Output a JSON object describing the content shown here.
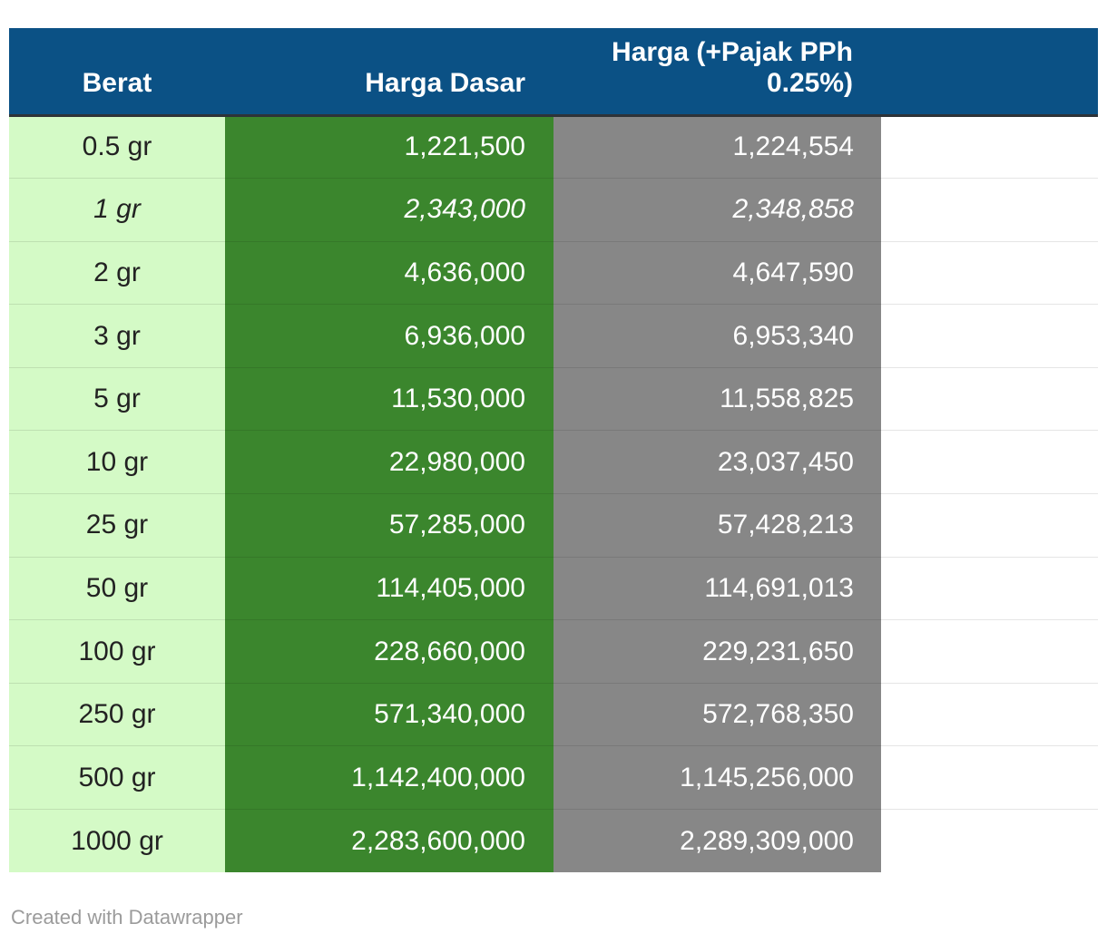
{
  "colors": {
    "header_bg": "#0b5185",
    "header_text": "#ffffff",
    "col_berat_bg": "#d4fac6",
    "col_dasar_bg": "#3b862d",
    "col_pajak_bg": "#878787",
    "berat_text": "#222222",
    "value_text": "#ffffff",
    "header_underline": "#2e3338",
    "footer_text": "#9b9b9b"
  },
  "table": {
    "columns": [
      {
        "label": "Berat"
      },
      {
        "label": "Harga Dasar"
      },
      {
        "label": "Harga (+Pajak PPh 0.25%)"
      }
    ],
    "rows": [
      {
        "berat": "0.5 gr",
        "harga_dasar": "1,221,500",
        "harga_pajak": "1,224,554",
        "italic": false
      },
      {
        "berat": "1 gr",
        "harga_dasar": "2,343,000",
        "harga_pajak": "2,348,858",
        "italic": true
      },
      {
        "berat": "2 gr",
        "harga_dasar": "4,636,000",
        "harga_pajak": "4,647,590",
        "italic": false
      },
      {
        "berat": "3 gr",
        "harga_dasar": "6,936,000",
        "harga_pajak": "6,953,340",
        "italic": false
      },
      {
        "berat": "5 gr",
        "harga_dasar": "11,530,000",
        "harga_pajak": "11,558,825",
        "italic": false
      },
      {
        "berat": "10 gr",
        "harga_dasar": "22,980,000",
        "harga_pajak": "23,037,450",
        "italic": false
      },
      {
        "berat": "25 gr",
        "harga_dasar": "57,285,000",
        "harga_pajak": "57,428,213",
        "italic": false
      },
      {
        "berat": "50 gr",
        "harga_dasar": "114,405,000",
        "harga_pajak": "114,691,013",
        "italic": false
      },
      {
        "berat": "100 gr",
        "harga_dasar": "228,660,000",
        "harga_pajak": "229,231,650",
        "italic": false
      },
      {
        "berat": "250 gr",
        "harga_dasar": "571,340,000",
        "harga_pajak": "572,768,350",
        "italic": false
      },
      {
        "berat": "500 gr",
        "harga_dasar": "1,142,400,000",
        "harga_pajak": "1,145,256,000",
        "italic": false
      },
      {
        "berat": "1000 gr",
        "harga_dasar": "2,283,600,000",
        "harga_pajak": "2,289,309,000",
        "italic": false
      }
    ]
  },
  "footer": {
    "attribution": "Created with Datawrapper"
  },
  "chart_data": {
    "type": "table",
    "columns": [
      "Berat",
      "Harga Dasar",
      "Harga (+Pajak PPh 0.25%)"
    ],
    "rows": [
      [
        "0.5 gr",
        1221500,
        1224554
      ],
      [
        "1 gr",
        2343000,
        2348858
      ],
      [
        "2 gr",
        4636000,
        4647590
      ],
      [
        "3 gr",
        6936000,
        6953340
      ],
      [
        "5 gr",
        11530000,
        11558825
      ],
      [
        "10 gr",
        22980000,
        23037450
      ],
      [
        "25 gr",
        57285000,
        57428213
      ],
      [
        "50 gr",
        114405000,
        114691013
      ],
      [
        "100 gr",
        228660000,
        229231650
      ],
      [
        "250 gr",
        571340000,
        572768350
      ],
      [
        "500 gr",
        1142400000,
        1145256000
      ],
      [
        "1000 gr",
        2283600000,
        2289309000
      ]
    ],
    "title": "",
    "legend_position": "none",
    "grid": "row-dividers"
  }
}
